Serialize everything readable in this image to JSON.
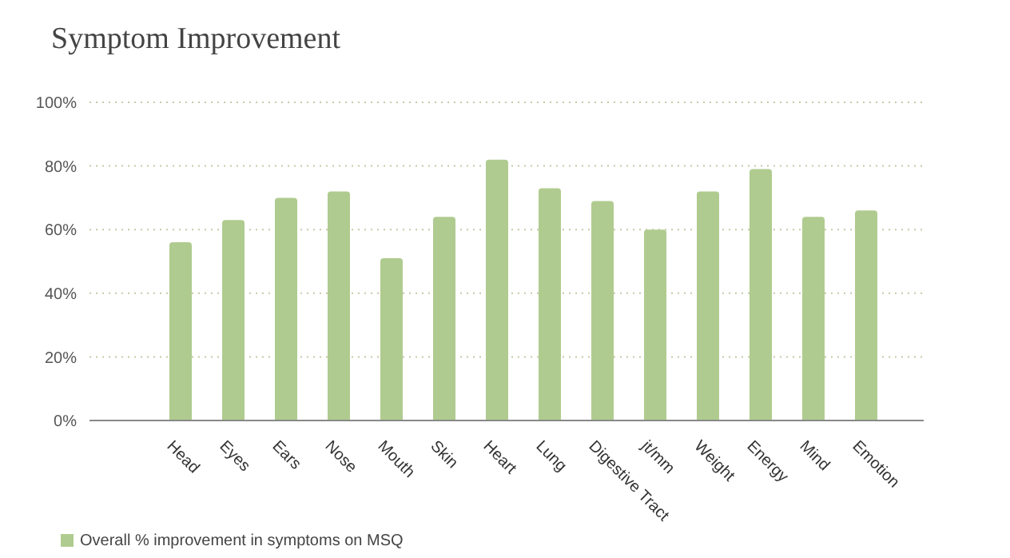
{
  "chart_data": {
    "type": "bar",
    "title": "Symptom Improvement",
    "categories": [
      "Head",
      "Eyes",
      "Ears",
      "Nose",
      "Mouth",
      "Skin",
      "Heart",
      "Lung",
      "Digestive Tract",
      "jt/mm",
      "Weight",
      "Energy",
      "Mind",
      "Emotion"
    ],
    "series": [
      {
        "name": "Overall % improvement in symptoms on MSQ",
        "color": "#b0cb8f",
        "values": [
          56,
          63,
          70,
          72,
          51,
          64,
          82,
          73,
          69,
          60,
          72,
          79,
          64,
          66
        ]
      }
    ],
    "ylim": [
      0,
      100
    ],
    "yticks": [
      {
        "value": 0,
        "label": "0%"
      },
      {
        "value": 20,
        "label": "20%"
      },
      {
        "value": 40,
        "label": "40%"
      },
      {
        "value": 60,
        "label": "60%"
      },
      {
        "value": 80,
        "label": "80%"
      },
      {
        "value": 100,
        "label": "100%"
      }
    ],
    "grid": "y",
    "legend": "bottom left"
  }
}
